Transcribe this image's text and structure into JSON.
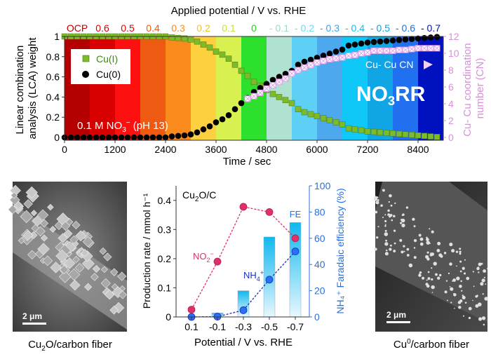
{
  "chart_data": [
    {
      "type": "scatter",
      "title": "Applied potential / V vs. RHE",
      "xlabel": "Time / sec",
      "ylabel": "Linear combination analysis (LCA) weight",
      "y2label": "Cu- Cu coordination number (CN)",
      "xlim": [
        0,
        9000
      ],
      "ylim": [
        0,
        1
      ],
      "y2lim": [
        0,
        12
      ],
      "xticks": [
        "0",
        "1200",
        "2400",
        "3600",
        "4800",
        "6000",
        "7200",
        "8400"
      ],
      "yticks": [
        "0",
        "0.2",
        "0.4",
        "0.6",
        "0.8",
        "1"
      ],
      "y2ticks": [
        "0",
        "2",
        "4",
        "6",
        "8",
        "10",
        "12"
      ],
      "legend_position": "top-left",
      "potential_bands": [
        {
          "label": "OCP",
          "start": 0,
          "end": 600,
          "color": "#b40000",
          "text_color": "#c00000"
        },
        {
          "label": "0.6",
          "start": 600,
          "end": 1200,
          "color": "#d80000",
          "text_color": "#d80000"
        },
        {
          "label": "0.5",
          "start": 1200,
          "end": 1800,
          "color": "#ff1010",
          "text_color": "#e00000"
        },
        {
          "label": "0.4",
          "start": 1800,
          "end": 2400,
          "color": "#ee5a12",
          "text_color": "#ee5a12"
        },
        {
          "label": "0.3",
          "start": 2400,
          "end": 3000,
          "color": "#fb8a1c",
          "text_color": "#fb8a1c"
        },
        {
          "label": "0.2",
          "start": 3000,
          "end": 3600,
          "color": "#fdd040",
          "text_color": "#f0c030"
        },
        {
          "label": "0.1",
          "start": 3600,
          "end": 4200,
          "color": "#d8f050",
          "text_color": "#c8e040"
        },
        {
          "label": "0",
          "start": 4200,
          "end": 4800,
          "color": "#2ee02e",
          "text_color": "#20d020"
        },
        {
          "label": "- 0.1",
          "start": 4800,
          "end": 5400,
          "color": "#b0e2d2",
          "text_color": "#a0d8c8"
        },
        {
          "label": "- 0.2",
          "start": 5400,
          "end": 6000,
          "color": "#5ed0f6",
          "text_color": "#70d8f0"
        },
        {
          "label": "- 0.3",
          "start": 6000,
          "end": 6600,
          "color": "#4ea8ee",
          "text_color": "#40a0e8"
        },
        {
          "label": "- 0.4",
          "start": 6600,
          "end": 7200,
          "color": "#10c8f8",
          "text_color": "#10c0f0"
        },
        {
          "label": "- 0.5",
          "start": 7200,
          "end": 7800,
          "color": "#10a6e6",
          "text_color": "#10a0e0"
        },
        {
          "label": "- 0.6",
          "start": 7800,
          "end": 8400,
          "color": "#2070f0",
          "text_color": "#2070e0"
        },
        {
          "label": "- 0.7",
          "start": 8400,
          "end": 9000,
          "color": "#0012c0",
          "text_color": "#0010b0"
        }
      ],
      "series": [
        {
          "name": "Cu(I)",
          "color": "#7dbb2a",
          "marker": "square",
          "axis": "left",
          "x": [
            0,
            150,
            300,
            450,
            600,
            750,
            900,
            1050,
            1200,
            1350,
            1500,
            1650,
            1800,
            1950,
            2100,
            2250,
            2400,
            2550,
            2700,
            2850,
            3000,
            3150,
            3300,
            3450,
            3600,
            3750,
            3900,
            4050,
            4200,
            4350,
            4500,
            4650,
            4800,
            4950,
            5100,
            5250,
            5400,
            5550,
            5700,
            5850,
            6000,
            6150,
            6300,
            6450,
            6600,
            6750,
            6900,
            7050,
            7200,
            7350,
            7500,
            7650,
            7800,
            7950,
            8100,
            8250,
            8400,
            8550,
            8700,
            8850
          ],
          "y": [
            1,
            1,
            1,
            1,
            1,
            1,
            1,
            1,
            1,
            1,
            1,
            1,
            1,
            1,
            1,
            1,
            1,
            0.99,
            0.985,
            0.98,
            0.97,
            0.95,
            0.92,
            0.89,
            0.85,
            0.82,
            0.78,
            0.72,
            0.66,
            0.61,
            0.55,
            0.51,
            0.47,
            0.43,
            0.4,
            0.37,
            0.34,
            0.28,
            0.25,
            0.23,
            0.21,
            0.19,
            0.17,
            0.15,
            0.13,
            0.09,
            0.08,
            0.07,
            0.06,
            0.055,
            0.05,
            0.045,
            0.04,
            0.035,
            0.03,
            0.025,
            0.02,
            0.015,
            0.01,
            0.005
          ]
        },
        {
          "name": "Cu(0)",
          "color": "#000000",
          "marker": "circle",
          "axis": "left",
          "x": [
            0,
            150,
            300,
            450,
            600,
            750,
            900,
            1050,
            1200,
            1350,
            1500,
            1650,
            1800,
            1950,
            2100,
            2250,
            2400,
            2550,
            2700,
            2850,
            3000,
            3150,
            3300,
            3450,
            3600,
            3750,
            3900,
            4050,
            4200,
            4350,
            4500,
            4650,
            4800,
            4950,
            5100,
            5250,
            5400,
            5550,
            5700,
            5850,
            6000,
            6150,
            6300,
            6450,
            6600,
            6750,
            6900,
            7050,
            7200,
            7350,
            7500,
            7650,
            7800,
            7950,
            8100,
            8250,
            8400,
            8550,
            8700,
            8850
          ],
          "y": [
            0,
            0,
            0,
            0,
            0,
            0,
            0,
            0,
            0,
            0,
            0,
            0,
            0,
            0,
            0,
            0,
            0,
            0.01,
            0.015,
            0.02,
            0.03,
            0.05,
            0.08,
            0.11,
            0.15,
            0.18,
            0.22,
            0.28,
            0.34,
            0.39,
            0.45,
            0.49,
            0.53,
            0.57,
            0.6,
            0.63,
            0.66,
            0.72,
            0.75,
            0.77,
            0.79,
            0.81,
            0.83,
            0.85,
            0.87,
            0.91,
            0.92,
            0.93,
            0.94,
            0.945,
            0.95,
            0.955,
            0.96,
            0.965,
            0.97,
            0.975,
            0.98,
            0.985,
            0.99,
            0.995
          ]
        },
        {
          "name": "Cu- Cu CN",
          "color": "#e0a0e8",
          "marker": "cross-square",
          "axis": "right",
          "x": [
            4350,
            4500,
            4650,
            4800,
            4950,
            5100,
            5250,
            5400,
            5550,
            5700,
            5850,
            6000,
            6150,
            6300,
            6450,
            6600,
            6750,
            6900,
            7050,
            7200,
            7350,
            7500,
            7650,
            7800,
            7950,
            8100,
            8250,
            8400,
            8550,
            8700,
            8850
          ],
          "y": [
            4.6,
            4.9,
            5.3,
            5.8,
            6.2,
            6.6,
            7.0,
            7.6,
            8.0,
            8.3,
            8.6,
            8.9,
            9.1,
            9.3,
            9.4,
            9.5,
            9.7,
            9.8,
            10.0,
            10.1,
            10.3,
            10.3,
            10.3,
            10.3,
            10.4,
            10.4,
            10.5,
            10.6,
            10.6,
            10.6,
            10.6
          ]
        }
      ],
      "annotations": {
        "electrolyte": "0.1 M NO",
        "electrolyte_sub": "3",
        "electrolyte_sup": "−",
        "electrolyte_tail": " (pH 13)",
        "reaction_main": "NO",
        "reaction_sub": "3",
        "reaction_tail": "RR",
        "cn_label": "Cu- Cu CN"
      }
    },
    {
      "type": "bar+line",
      "title": "Cu2O/C",
      "title_main": "Cu",
      "title_sub": "2",
      "title_tail": "O/C",
      "xlabel": "Potential / V vs. RHE",
      "ylabel": "Production rate / mmol h⁻¹",
      "y2label": "NH₄⁺ Faradaic efficiency (%)",
      "categories": [
        "0.1",
        "-0.1",
        "-0.3",
        "-0.5",
        "-0.7"
      ],
      "ylim": [
        0,
        0.45
      ],
      "y2lim": [
        0,
        100
      ],
      "yticks": [
        "0",
        "0.1",
        "0.2",
        "0.3",
        "0.4"
      ],
      "y2ticks": [
        "0",
        "20",
        "40",
        "60",
        "80",
        "100"
      ],
      "series": [
        {
          "name": "NO2−",
          "label_main": "NO",
          "label_sub": "2",
          "label_sup": "−",
          "type": "line",
          "color": "#e0306a",
          "axis": "left",
          "values": [
            0.025,
            0.19,
            0.378,
            0.36,
            0.27
          ]
        },
        {
          "name": "NH4+",
          "label_main": "NH",
          "label_sub": "4",
          "label_sup": "+",
          "type": "line",
          "color": "#1a30c0",
          "marker_color": "#2a70f0",
          "axis": "left",
          "values": [
            0,
            0.001,
            0.023,
            0.128,
            0.225
          ]
        },
        {
          "name": "FE",
          "type": "bar",
          "color": "#10b8ee",
          "axis": "right",
          "values": [
            0,
            3,
            20,
            61,
            72
          ]
        }
      ]
    }
  ],
  "images": {
    "left": {
      "caption_main": "Cu",
      "caption_sub": "2",
      "caption_tail": "O/carbon fiber",
      "scale_bar": "2 μm"
    },
    "right": {
      "caption_main": "Cu",
      "caption_sup": "0",
      "caption_tail": "/carbon fiber",
      "scale_bar": "2 μm"
    }
  },
  "colors": {
    "axis_right_top": "#d890d8",
    "axis_right_bottom": "#2a70e0"
  }
}
